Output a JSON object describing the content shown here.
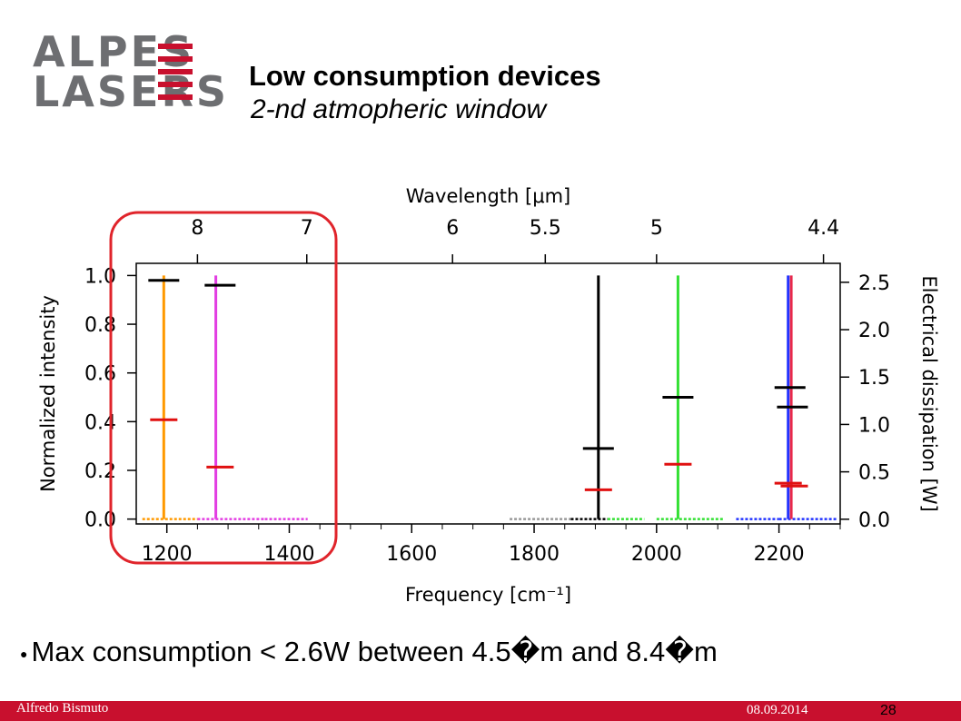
{
  "logo": {
    "line1": "ALPES",
    "line2": "LASERS"
  },
  "header": {
    "title": "Low consumption devices",
    "subtitle": "2-nd atmopheric window"
  },
  "bullet": {
    "text": "Max consumption < 2.6W between 4.5�m and 8.4�m"
  },
  "footer": {
    "author": "Alfredo Bismuto",
    "date": "08.09.2014",
    "page": "28"
  },
  "colors": {
    "brand_red": "#c8102e",
    "logo_gray": "#6d6e71",
    "highlight_box": "#e0242b"
  },
  "chart_data": {
    "type": "scatter",
    "xlabel": "Frequency [cm⁻¹]",
    "ylabel": "Normalized intensity",
    "y2label": "Electrical dissipation [W]",
    "top_xlabel": "Wavelength [μm]",
    "xlim": [
      1150,
      2300
    ],
    "ylim": [
      -0.02,
      1.05
    ],
    "y2lim": [
      -0.05,
      2.7
    ],
    "xticks": [
      1200,
      1400,
      1600,
      1800,
      2000,
      2200
    ],
    "yticks": [
      0.0,
      0.2,
      0.4,
      0.6,
      0.8,
      1.0
    ],
    "y2ticks": [
      0.0,
      0.5,
      1.0,
      1.5,
      2.0,
      2.5
    ],
    "top_ticks": [
      {
        "label": "8",
        "x": 1250
      },
      {
        "label": "7",
        "x": 1428.6
      },
      {
        "label": "6",
        "x": 1666.7
      },
      {
        "label": "5.5",
        "x": 1818.2
      },
      {
        "label": "5",
        "x": 2000
      },
      {
        "label": "4.4",
        "x": 2272.7
      }
    ],
    "spectra": [
      {
        "color": "#ff9900",
        "peak": 1195
      },
      {
        "color": "#e23de2",
        "peak": 1280
      },
      {
        "color": "#000000",
        "peak": 1905
      },
      {
        "color": "#33e033",
        "peak": 2035
      },
      {
        "color": "#2233ff",
        "peak": 2215
      },
      {
        "color": "#e8294a",
        "peak": 2220
      }
    ],
    "baseline_segments": [
      {
        "color": "#ff9900",
        "from": 1160,
        "to": 1250
      },
      {
        "color": "#e23de2",
        "from": 1250,
        "to": 1360
      },
      {
        "color": "#e23de2",
        "from": 1360,
        "to": 1430
      },
      {
        "color": "#999999",
        "from": 1760,
        "to": 1860
      },
      {
        "color": "#000000",
        "from": 1860,
        "to": 1920
      },
      {
        "color": "#33e033",
        "from": 1920,
        "to": 1980
      },
      {
        "color": "#33e033",
        "from": 2000,
        "to": 2110
      },
      {
        "color": "#2233ff",
        "from": 2130,
        "to": 2200
      },
      {
        "color": "#2233ff",
        "from": 2200,
        "to": 2295
      }
    ],
    "intensity_markers": [
      {
        "x": 1195,
        "y": 0.98,
        "color": "#000000"
      },
      {
        "x": 1287,
        "y": 0.96,
        "color": "#000000"
      },
      {
        "x": 1905,
        "y": 0.29,
        "color": "#000000"
      },
      {
        "x": 2035,
        "y": 0.5,
        "color": "#000000"
      },
      {
        "x": 2218,
        "y": 0.54,
        "color": "#000000"
      },
      {
        "x": 2222,
        "y": 0.46,
        "color": "#000000"
      }
    ],
    "dissipation_markers": [
      {
        "x": 1195,
        "y": 1.05,
        "color": "#e01010"
      },
      {
        "x": 1287,
        "y": 0.55,
        "color": "#e01010"
      },
      {
        "x": 1905,
        "y": 0.31,
        "color": "#e01010"
      },
      {
        "x": 2035,
        "y": 0.58,
        "color": "#e01010"
      },
      {
        "x": 2215,
        "y": 0.38,
        "color": "#e01010"
      },
      {
        "x": 2225,
        "y": 0.35,
        "color": "#e01010"
      }
    ],
    "highlight": {
      "x_from": 1150,
      "x_to": 1450,
      "color": "#e0242b"
    },
    "grid": false,
    "legend": "none"
  }
}
